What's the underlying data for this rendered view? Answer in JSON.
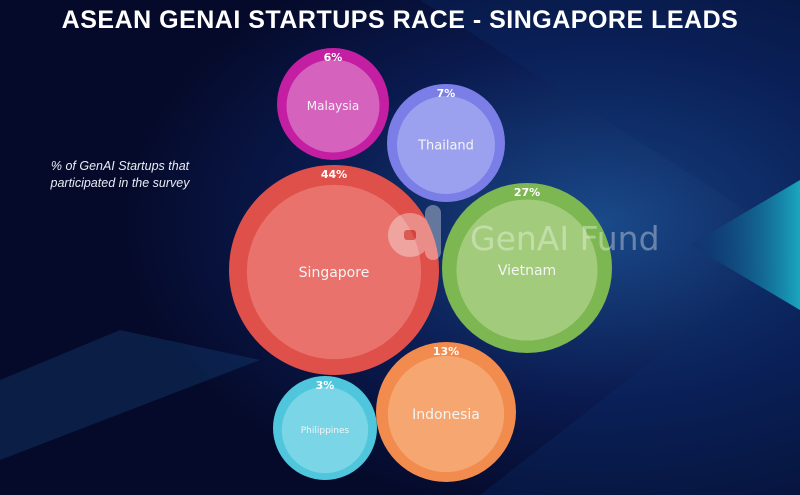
{
  "chart_data": {
    "type": "bubble",
    "title": "ASEAN GENAI STARTUPS RACE - SINGAPORE LEADS",
    "subtitle": "% of GenAI Startups that participated in the survey",
    "watermark": "GenAI Fund",
    "unit": "%",
    "bubbles": [
      {
        "label": "Malaysia",
        "value": 6,
        "display": "6%",
        "color": "#c41fa2",
        "inner_color": "#d562bd"
      },
      {
        "label": "Thailand",
        "value": 7,
        "display": "7%",
        "color": "#7a7ee6",
        "inner_color": "#9ca1ef"
      },
      {
        "label": "Singapore",
        "value": 44,
        "display": "44%",
        "color": "#e0504a",
        "inner_color": "#e9736c"
      },
      {
        "label": "Vietnam",
        "value": 27,
        "display": "27%",
        "color": "#7cb752",
        "inner_color": "#a2cc7b"
      },
      {
        "label": "Indonesia",
        "value": 13,
        "display": "13%",
        "color": "#f28b4e",
        "inner_color": "#f6a670"
      },
      {
        "label": "Philippines",
        "value": 3,
        "display": "3%",
        "color": "#50c6dd",
        "inner_color": "#7ad6e6"
      }
    ]
  }
}
